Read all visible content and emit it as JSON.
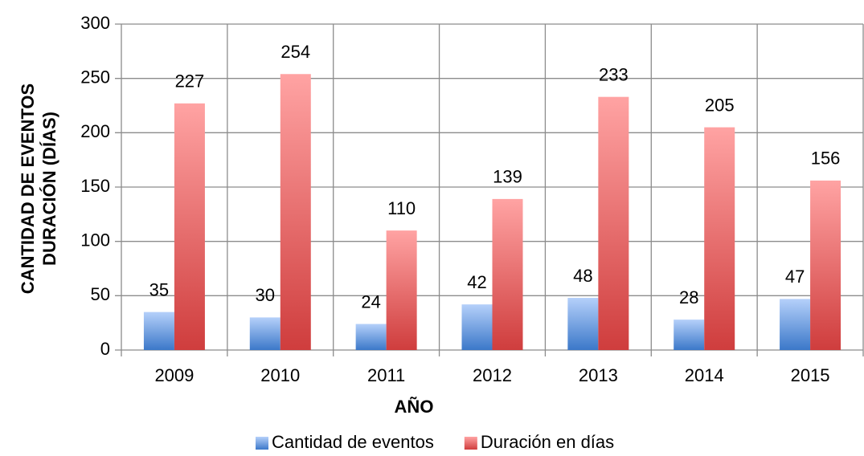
{
  "chart_data": {
    "type": "bar",
    "categories": [
      "2009",
      "2010",
      "2011",
      "2012",
      "2013",
      "2014",
      "2015"
    ],
    "series": [
      {
        "name": "Cantidad de eventos",
        "color": "#4a86d8",
        "values": [
          35,
          30,
          24,
          42,
          48,
          28,
          47
        ]
      },
      {
        "name": "Duración en días",
        "color": "#d84444",
        "values": [
          227,
          254,
          110,
          139,
          233,
          205,
          156
        ]
      }
    ],
    "xlabel": "AÑO",
    "ylabel": [
      "CANTIDAD DE EVENTOS",
      "DURACIÓN (DÍAS)"
    ],
    "ylim": [
      0,
      300
    ],
    "yticks": [
      0,
      50,
      100,
      150,
      200,
      250,
      300
    ],
    "grid": true,
    "legend": "bottom"
  }
}
